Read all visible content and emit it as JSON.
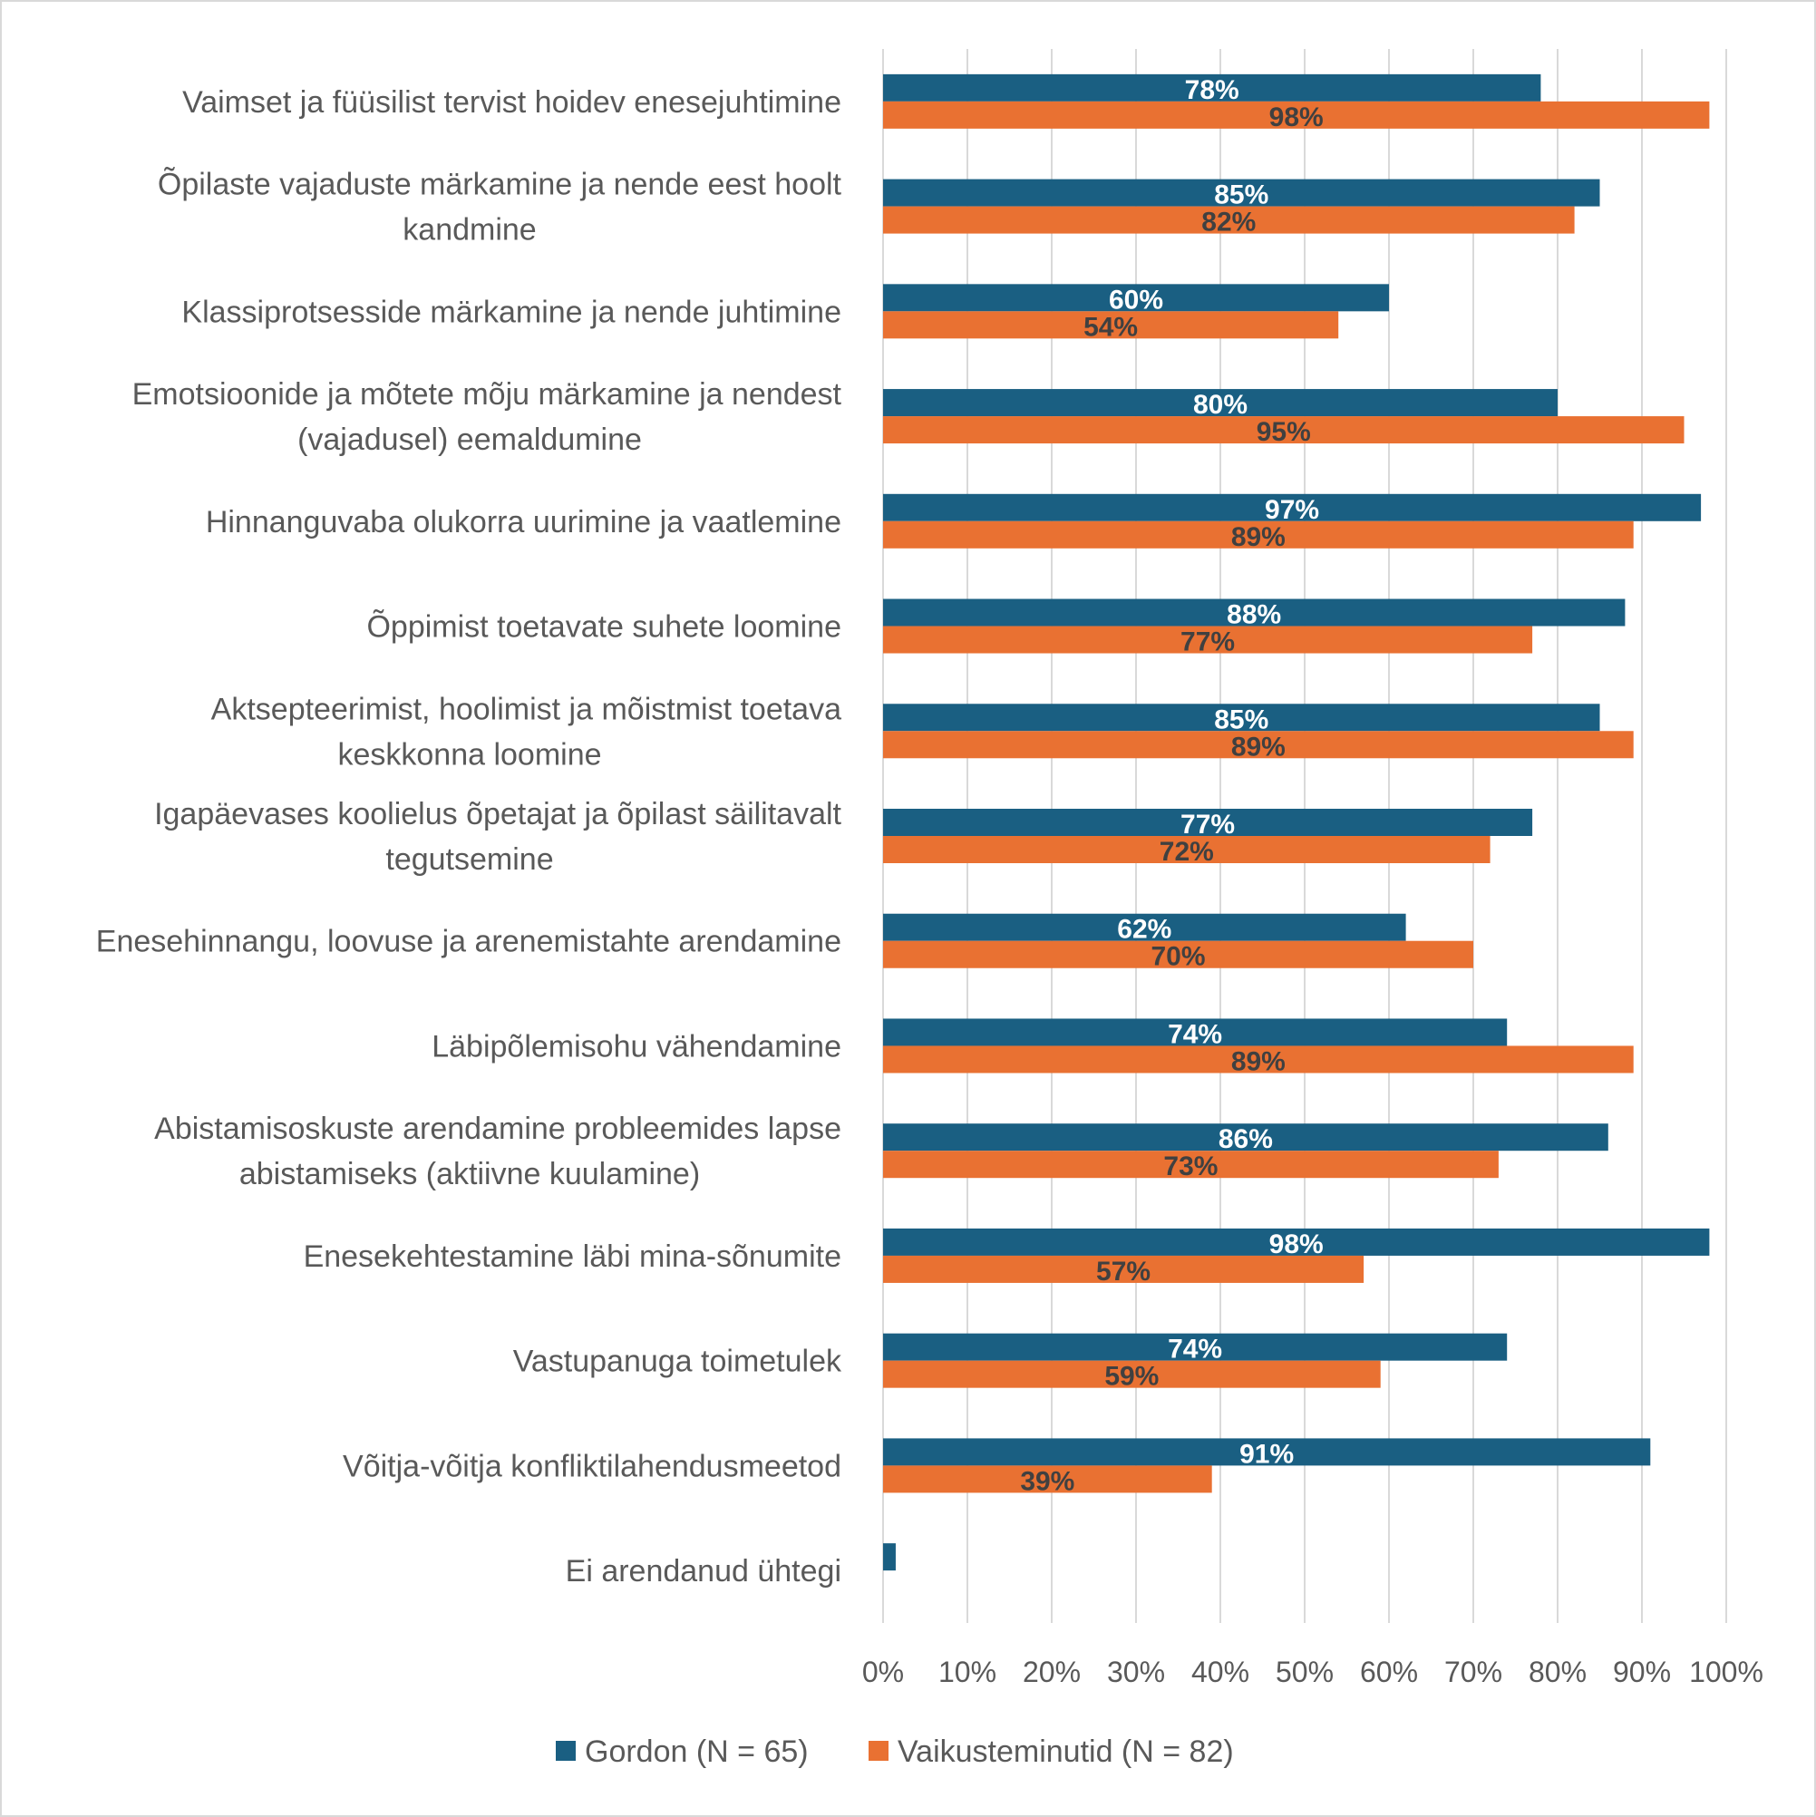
{
  "chart_data": {
    "type": "bar",
    "orientation": "horizontal",
    "title": "",
    "xlabel": "",
    "ylabel": "",
    "xlim": [
      0,
      100
    ],
    "grid": true,
    "legend_position": "bottom",
    "tick_labels": [
      "0%",
      "10%",
      "20%",
      "30%",
      "40%",
      "50%",
      "60%",
      "70%",
      "80%",
      "90%",
      "100%"
    ],
    "categories": [
      [
        "Vaimset ja füüsilist tervist hoidev enesejuhtimine"
      ],
      [
        "Õpilaste vajaduste märkamine ja nende eest hoolt",
        "kandmine"
      ],
      [
        "Klassiprotsesside märkamine ja nende juhtimine"
      ],
      [
        "Emotsioonide ja mõtete mõju märkamine ja nendest",
        "(vajadusel) eemaldumine"
      ],
      [
        "Hinnanguvaba olukorra uurimine ja vaatlemine"
      ],
      [
        "Õppimist toetavate suhete loomine"
      ],
      [
        "Aktsepteerimist, hoolimist ja mõistmist toetava",
        "keskkonna loomine"
      ],
      [
        "Igapäevases koolielus õpetajat ja õpilast säilitavalt",
        "tegutsemine"
      ],
      [
        "Enesehinnangu, loovuse ja arenemistahte arendamine"
      ],
      [
        "Läbipõlemisohu vähendamine"
      ],
      [
        "Abistamisoskuste arendamine probleemides lapse",
        "abistamiseks (aktiivne kuulamine)"
      ],
      [
        "Enesekehtestamine läbi mina-sõnumite"
      ],
      [
        "Vastupanuga toimetulek"
      ],
      [
        "Võitja-võitja konfliktilahendusmeetod"
      ],
      [
        "Ei arendanud ühtegi"
      ]
    ],
    "series": [
      {
        "name": "Gordon (N = 65)",
        "color": "#1A5F82",
        "label_color": "#FFFFFF",
        "values": [
          78,
          85,
          60,
          80,
          97,
          88,
          85,
          77,
          62,
          74,
          86,
          98,
          74,
          91,
          1.5
        ],
        "labels": [
          "78%",
          "85%",
          "60%",
          "80%",
          "97%",
          "88%",
          "85%",
          "77%",
          "62%",
          "74%",
          "86%",
          "98%",
          "74%",
          "91%",
          ""
        ]
      },
      {
        "name": "Vaikusteminutid (N = 82)",
        "color": "#E97132",
        "label_color": "#404040",
        "values": [
          98,
          82,
          54,
          95,
          89,
          77,
          89,
          72,
          70,
          89,
          73,
          57,
          59,
          39,
          0
        ],
        "labels": [
          "98%",
          "82%",
          "54%",
          "95%",
          "89%",
          "77%",
          "89%",
          "72%",
          "70%",
          "89%",
          "73%",
          "57%",
          "59%",
          "39%",
          ""
        ]
      }
    ]
  }
}
